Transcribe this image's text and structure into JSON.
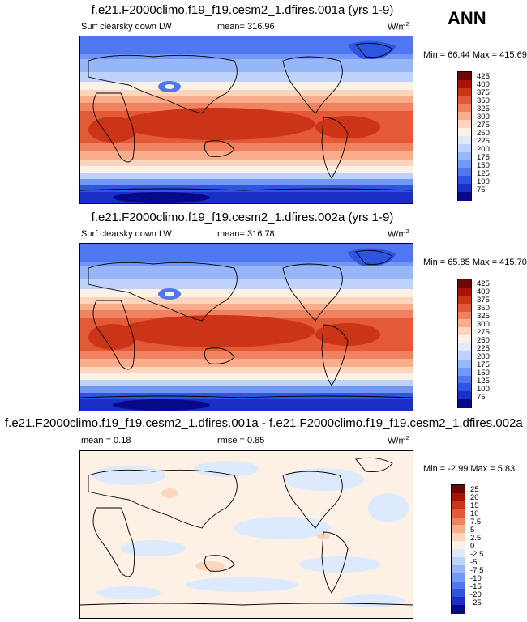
{
  "season_label": "ANN",
  "panels": [
    {
      "id": "p1",
      "title": "f.e21.F2000climo.f19_f19.cesm2_1.dfires.001a (yrs 1-9)",
      "left_label": "Surf clearsky down LW",
      "mean_text": "mean= 316.96",
      "units_base": "W/m",
      "units_exp": "2",
      "minmax": "Min =  66.44 Max = 415.69",
      "colorbar_levels": [
        "425",
        "400",
        "375",
        "350",
        "325",
        "300",
        "275",
        "250",
        "225",
        "200",
        "175",
        "150",
        "125",
        "100",
        "75"
      ]
    },
    {
      "id": "p2",
      "title": "f.e21.F2000climo.f19_f19.cesm2_1.dfires.002a (yrs 1-9)",
      "left_label": "Surf clearsky down LW",
      "mean_text": "mean= 316.78",
      "units_base": "W/m",
      "units_exp": "2",
      "minmax": "Min =  65.85 Max = 415.70",
      "colorbar_levels": [
        "425",
        "400",
        "375",
        "350",
        "325",
        "300",
        "275",
        "250",
        "225",
        "200",
        "175",
        "150",
        "125",
        "100",
        "75"
      ]
    },
    {
      "id": "p3",
      "title": "f.e21.F2000climo.f19_f19.cesm2_1.dfires.001a - f.e21.F2000climo.f19_f19.cesm2_1.dfires.002a",
      "left_label": "mean =   0.18",
      "mean_text": "rmse =   0.85",
      "units_base": "W/m",
      "units_exp": "2",
      "minmax": "Min =  -2.99 Max =   5.83",
      "colorbar_levels": [
        "25",
        "20",
        "15",
        "10",
        "7.5",
        "5",
        "2.5",
        "0",
        "-2.5",
        "-5",
        "-7.5",
        "-10",
        "-15",
        "-20",
        "-25"
      ]
    }
  ],
  "chart_data": [
    {
      "type": "heatmap",
      "title": "f.e21.F2000climo.f19_f19.cesm2_1.dfires.001a (yrs 1-9)",
      "variable": "Surf clearsky down LW",
      "units": "W/m2",
      "mean": 316.96,
      "min": 66.44,
      "max": 415.69,
      "contour_levels": [
        75,
        100,
        125,
        150,
        175,
        200,
        225,
        250,
        275,
        300,
        325,
        350,
        375,
        400,
        425
      ],
      "colors": [
        "#08088a",
        "#1a2fc7",
        "#2f55e0",
        "#4f78f0",
        "#7298f5",
        "#97b6f8",
        "#bdd3fb",
        "#dde9fd",
        "#fdf1e6",
        "#fdd5bd",
        "#f8ad8c",
        "#f0825f",
        "#e35a37",
        "#cc3418",
        "#a41508",
        "#6e0603"
      ]
    },
    {
      "type": "heatmap",
      "title": "f.e21.F2000climo.f19_f19.cesm2_1.dfires.002a (yrs 1-9)",
      "variable": "Surf clearsky down LW",
      "units": "W/m2",
      "mean": 316.78,
      "min": 65.85,
      "max": 415.7,
      "contour_levels": [
        75,
        100,
        125,
        150,
        175,
        200,
        225,
        250,
        275,
        300,
        325,
        350,
        375,
        400,
        425
      ],
      "colors": [
        "#08088a",
        "#1a2fc7",
        "#2f55e0",
        "#4f78f0",
        "#7298f5",
        "#97b6f8",
        "#bdd3fb",
        "#dde9fd",
        "#fdf1e6",
        "#fdd5bd",
        "#f8ad8c",
        "#f0825f",
        "#e35a37",
        "#cc3418",
        "#a41508",
        "#6e0603"
      ]
    },
    {
      "type": "heatmap",
      "title": "f.e21.F2000climo.f19_f19.cesm2_1.dfires.001a - f.e21.F2000climo.f19_f19.cesm2_1.dfires.002a",
      "units": "W/m2",
      "mean": 0.18,
      "rmse": 0.85,
      "min": -2.99,
      "max": 5.83,
      "contour_levels": [
        -25,
        -20,
        -15,
        -10,
        -7.5,
        -5,
        -2.5,
        0,
        2.5,
        5,
        7.5,
        10,
        15,
        20,
        25
      ],
      "colors": [
        "#08088a",
        "#1a2fc7",
        "#2f55e0",
        "#4f78f0",
        "#7298f5",
        "#97b6f8",
        "#bdd3fb",
        "#dde9fd",
        "#fdf1e6",
        "#fdd5bd",
        "#f8ad8c",
        "#f0825f",
        "#e35a37",
        "#cc3418",
        "#a41508",
        "#6e0603"
      ]
    }
  ]
}
